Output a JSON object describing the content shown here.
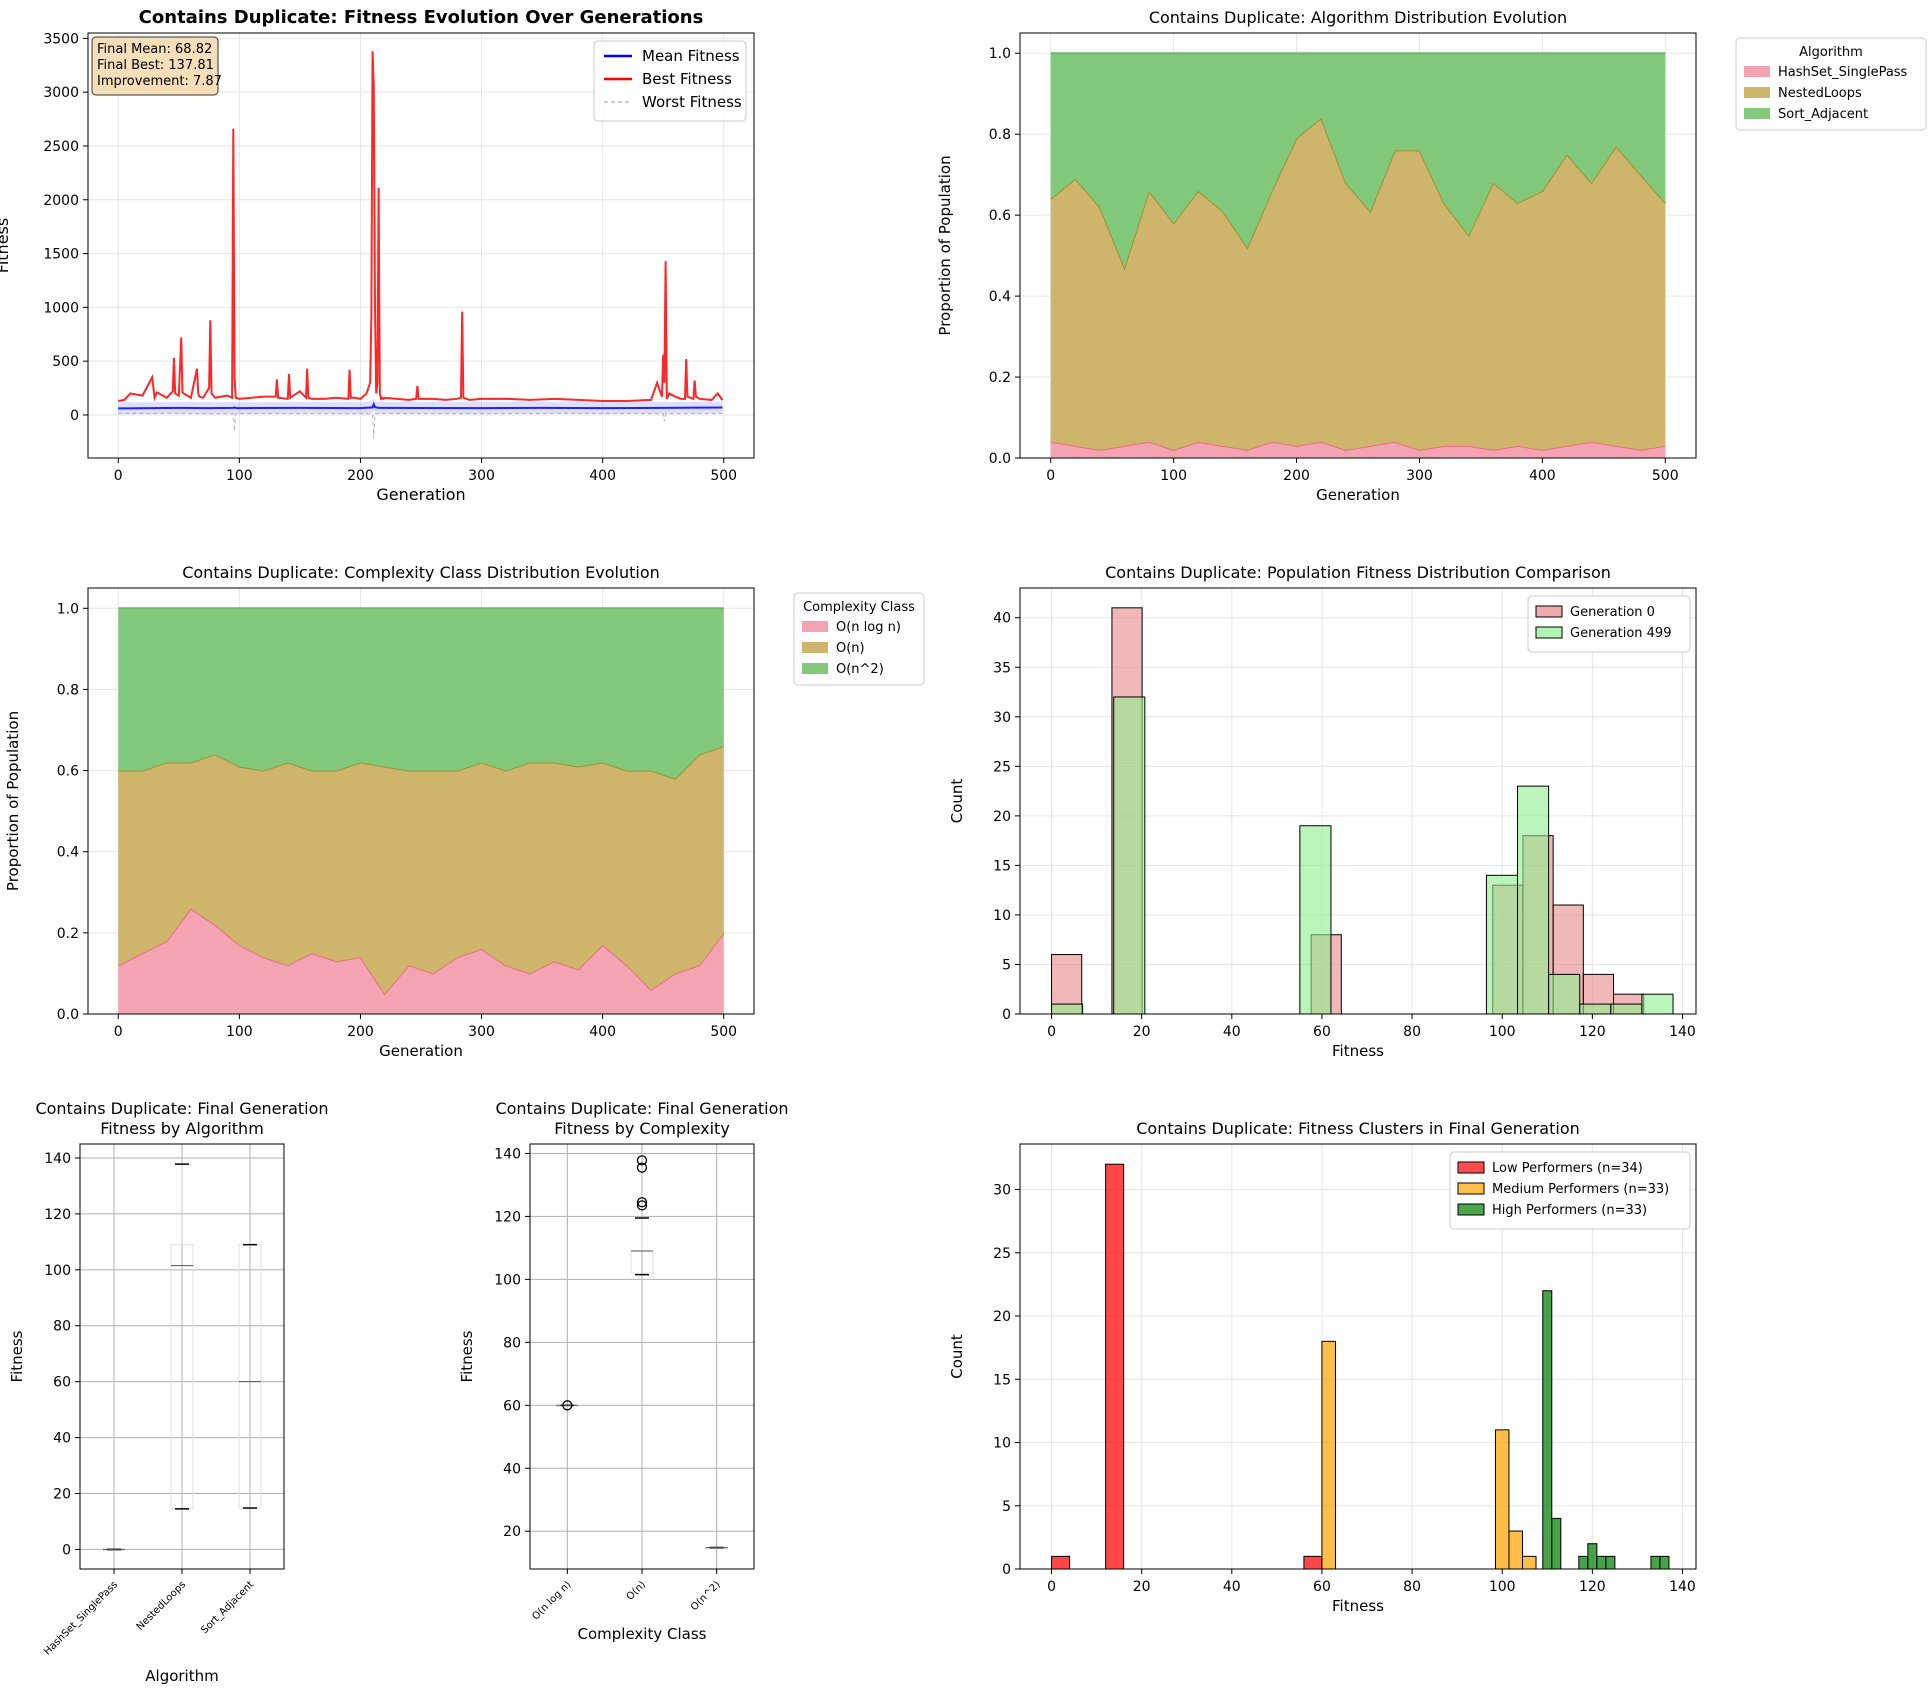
{
  "chart_data": [
    {
      "id": "fitness_evolution",
      "type": "line",
      "title": "Contains Duplicate: Fitness Evolution Over Generations",
      "xlabel": "Generation",
      "ylabel": "Fitness",
      "xlim": [
        -25,
        525
      ],
      "ylim": [
        -400,
        3550
      ],
      "xticks": [
        0,
        100,
        200,
        300,
        400,
        500
      ],
      "yticks": [
        0,
        500,
        1000,
        1500,
        2000,
        2500,
        3000,
        3500
      ],
      "grid": true,
      "legend_position": "upper right",
      "stats_box": [
        "Final Mean: 68.82",
        "Final Best: 137.81",
        "Improvement: 7.87"
      ],
      "series": [
        {
          "name": "Mean Fitness",
          "color": "#0000ff",
          "style": "solid",
          "x": [
            0,
            25,
            50,
            75,
            95,
            96,
            97,
            100,
            150,
            200,
            210,
            211,
            212,
            215,
            250,
            300,
            350,
            400,
            450,
            499
          ],
          "y": [
            61,
            63,
            66,
            64,
            66,
            70,
            65,
            64,
            66,
            64,
            70,
            100,
            72,
            66,
            65,
            64,
            66,
            63,
            66,
            68.82
          ]
        },
        {
          "name": "Best Fitness",
          "color": "#ff0000",
          "style": "solid",
          "x": [
            0,
            5,
            10,
            20,
            28,
            30,
            32,
            40,
            45,
            46,
            47,
            50,
            52,
            53,
            54,
            60,
            65,
            66,
            67,
            70,
            75,
            76,
            77,
            80,
            90,
            94,
            95,
            96,
            97,
            100,
            110,
            120,
            130,
            131,
            132,
            140,
            141,
            142,
            150,
            155,
            156,
            157,
            160,
            170,
            180,
            190,
            191,
            192,
            195,
            200,
            205,
            208,
            209,
            210,
            211,
            212,
            213,
            214,
            215,
            216,
            217,
            218,
            219,
            220,
            230,
            240,
            246,
            247,
            248,
            260,
            270,
            280,
            283,
            284,
            285,
            290,
            300,
            320,
            340,
            360,
            380,
            400,
            420,
            440,
            445,
            449,
            450,
            451,
            452,
            453,
            455,
            460,
            465,
            468,
            469,
            470,
            475,
            476,
            477,
            480,
            490,
            495,
            499
          ],
          "y": [
            130,
            140,
            200,
            180,
            350,
            160,
            210,
            160,
            220,
            530,
            200,
            180,
            720,
            210,
            200,
            160,
            430,
            200,
            170,
            160,
            250,
            880,
            200,
            160,
            180,
            160,
            2660,
            350,
            160,
            150,
            160,
            170,
            170,
            330,
            160,
            150,
            380,
            160,
            220,
            160,
            430,
            160,
            150,
            150,
            160,
            150,
            420,
            160,
            160,
            150,
            200,
            300,
            900,
            3380,
            3050,
            1000,
            200,
            300,
            2110,
            200,
            150,
            160,
            150,
            160,
            150,
            140,
            150,
            270,
            150,
            150,
            140,
            150,
            160,
            960,
            160,
            140,
            150,
            150,
            140,
            150,
            140,
            130,
            130,
            140,
            300,
            170,
            560,
            300,
            1430,
            150,
            200,
            170,
            150,
            150,
            520,
            170,
            150,
            320,
            170,
            150,
            140,
            200,
            137.81
          ]
        },
        {
          "name": "Worst Fitness",
          "color": "#999999",
          "style": "dashed",
          "x": [
            0,
            25,
            50,
            75,
            95,
            96,
            97,
            100,
            150,
            200,
            210,
            211,
            212,
            215,
            250,
            300,
            350,
            400,
            450,
            451,
            452,
            499
          ],
          "y": [
            15,
            14,
            15,
            12,
            10,
            -150,
            10,
            14,
            13,
            12,
            10,
            -220,
            10,
            14,
            13,
            12,
            14,
            15,
            12,
            -60,
            12,
            14
          ]
        }
      ]
    },
    {
      "id": "algorithm_distribution",
      "type": "area",
      "title": "Contains Duplicate: Algorithm Distribution Evolution",
      "xlabel": "Generation",
      "ylabel": "Proportion of Population",
      "xlim": [
        -25,
        525
      ],
      "ylim": [
        0,
        1.05
      ],
      "xticks": [
        0,
        100,
        200,
        300,
        400,
        500
      ],
      "yticks": [
        0.0,
        0.2,
        0.4,
        0.6,
        0.8,
        1.0
      ],
      "grid": true,
      "legend_position": "outside upper right",
      "legend_title": "Algorithm",
      "x": [
        0,
        20,
        40,
        60,
        80,
        100,
        120,
        140,
        160,
        180,
        200,
        220,
        240,
        260,
        280,
        300,
        320,
        340,
        360,
        380,
        400,
        420,
        440,
        460,
        480,
        500
      ],
      "series": [
        {
          "name": "HashSet_SinglePass",
          "color": "#f4a3b3",
          "line": "#e8707f",
          "values": [
            0.04,
            0.03,
            0.02,
            0.03,
            0.04,
            0.02,
            0.04,
            0.03,
            0.02,
            0.04,
            0.03,
            0.04,
            0.02,
            0.03,
            0.04,
            0.02,
            0.03,
            0.03,
            0.02,
            0.03,
            0.02,
            0.03,
            0.04,
            0.03,
            0.02,
            0.03
          ]
        },
        {
          "name": "NestedLoops",
          "color": "#cfb56c",
          "line": "#9e9430",
          "values": [
            0.6,
            0.66,
            0.6,
            0.44,
            0.62,
            0.56,
            0.62,
            0.58,
            0.5,
            0.62,
            0.76,
            0.8,
            0.66,
            0.58,
            0.72,
            0.74,
            0.6,
            0.52,
            0.66,
            0.6,
            0.64,
            0.72,
            0.64,
            0.74,
            0.68,
            0.6
          ]
        },
        {
          "name": "Sort_Adjacent",
          "color": "#82c97c",
          "line": "#6fb86a",
          "values": [
            0.36,
            0.31,
            0.38,
            0.53,
            0.34,
            0.42,
            0.34,
            0.39,
            0.48,
            0.34,
            0.21,
            0.16,
            0.32,
            0.39,
            0.24,
            0.24,
            0.37,
            0.45,
            0.32,
            0.37,
            0.34,
            0.25,
            0.32,
            0.23,
            0.3,
            0.37
          ]
        }
      ]
    },
    {
      "id": "complexity_distribution",
      "type": "area",
      "title": "Contains Duplicate: Complexity Class Distribution Evolution",
      "xlabel": "Generation",
      "ylabel": "Proportion of Population",
      "xlim": [
        -25,
        525
      ],
      "ylim": [
        0,
        1.05
      ],
      "xticks": [
        0,
        100,
        200,
        300,
        400,
        500
      ],
      "yticks": [
        0.0,
        0.2,
        0.4,
        0.6,
        0.8,
        1.0
      ],
      "grid": true,
      "legend_position": "outside upper right",
      "legend_title": "Complexity Class",
      "x": [
        0,
        20,
        40,
        60,
        80,
        100,
        120,
        140,
        160,
        180,
        200,
        220,
        240,
        260,
        280,
        300,
        320,
        340,
        360,
        380,
        400,
        420,
        440,
        460,
        480,
        500
      ],
      "series": [
        {
          "name": "O(n log n)",
          "color": "#f4a3b3",
          "line": "#e8707f",
          "values": [
            0.12,
            0.15,
            0.18,
            0.26,
            0.22,
            0.17,
            0.14,
            0.12,
            0.15,
            0.13,
            0.14,
            0.05,
            0.12,
            0.1,
            0.14,
            0.16,
            0.12,
            0.1,
            0.13,
            0.11,
            0.17,
            0.12,
            0.06,
            0.1,
            0.12,
            0.2
          ]
        },
        {
          "name": "O(n)",
          "color": "#cfb56c",
          "line": "#9e9430",
          "values": [
            0.48,
            0.45,
            0.44,
            0.36,
            0.42,
            0.44,
            0.46,
            0.5,
            0.45,
            0.47,
            0.48,
            0.56,
            0.48,
            0.5,
            0.46,
            0.46,
            0.48,
            0.52,
            0.49,
            0.5,
            0.45,
            0.48,
            0.54,
            0.48,
            0.52,
            0.46
          ]
        },
        {
          "name": "O(n^2)",
          "color": "#82c97c",
          "line": "#6fb86a",
          "values": [
            0.4,
            0.4,
            0.38,
            0.38,
            0.36,
            0.39,
            0.4,
            0.38,
            0.4,
            0.4,
            0.38,
            0.39,
            0.4,
            0.4,
            0.4,
            0.38,
            0.4,
            0.38,
            0.38,
            0.39,
            0.38,
            0.4,
            0.4,
            0.42,
            0.36,
            0.34
          ]
        }
      ]
    },
    {
      "id": "fitness_distribution_comparison",
      "type": "bar",
      "title": "Contains Duplicate: Population Fitness Distribution Comparison",
      "xlabel": "Fitness",
      "ylabel": "Count",
      "xlim": [
        -7,
        143
      ],
      "ylim": [
        0,
        43
      ],
      "xticks": [
        0,
        20,
        40,
        60,
        80,
        100,
        120,
        140
      ],
      "yticks": [
        0,
        5,
        10,
        15,
        20,
        25,
        30,
        35,
        40
      ],
      "grid": true,
      "legend_position": "upper right",
      "series": [
        {
          "name": "Generation 0",
          "color": "#e8898b",
          "edge": "#000000",
          "bins": [
            [
              0,
              6.7,
              6
            ],
            [
              13.4,
              20.1,
              41
            ],
            [
              57.6,
              64.3,
              8
            ],
            [
              97.9,
              104.6,
              13
            ],
            [
              104.6,
              111.3,
              18
            ],
            [
              111.3,
              118,
              11
            ],
            [
              118,
              124.7,
              4
            ],
            [
              124.7,
              131.4,
              2
            ]
          ]
        },
        {
          "name": "Generation 499",
          "color": "#90ee90",
          "edge": "#000000",
          "bins": [
            [
              0,
              6.9,
              1
            ],
            [
              13.8,
              20.7,
              32
            ],
            [
              55.1,
              62,
              19
            ],
            [
              96.5,
              103.4,
              14
            ],
            [
              103.4,
              110.3,
              23
            ],
            [
              110.3,
              117.2,
              4
            ],
            [
              117.2,
              124.1,
              1
            ],
            [
              124.1,
              131,
              1
            ],
            [
              131,
              137.9,
              2
            ]
          ]
        }
      ]
    },
    {
      "id": "boxplot_algorithm",
      "type": "box",
      "title": "Contains Duplicate: Final Generation\nFitness by Algorithm",
      "xlabel": "Algorithm",
      "ylabel": "Fitness",
      "ylim": [
        -7,
        145
      ],
      "yticks": [
        0,
        20,
        40,
        60,
        80,
        100,
        120,
        140
      ],
      "grid": true,
      "categories": [
        "HashSet_SinglePass",
        "NestedLoops",
        "Sort_Adjacent"
      ],
      "boxes": [
        {
          "min": 0,
          "q1": 0,
          "median": 0,
          "q3": 0,
          "max": 0,
          "outliers": []
        },
        {
          "min": 14.5,
          "q1": 14.5,
          "median": 101.5,
          "q3": 109,
          "max": 137.8,
          "outliers": []
        },
        {
          "min": 14.8,
          "q1": 14.8,
          "median": 60,
          "q3": 109,
          "max": 109,
          "outliers": []
        }
      ]
    },
    {
      "id": "boxplot_complexity",
      "type": "box",
      "title": "Contains Duplicate: Final Generation\nFitness by Complexity",
      "xlabel": "Complexity Class",
      "ylabel": "Fitness",
      "ylim": [
        8,
        143
      ],
      "yticks": [
        20,
        40,
        60,
        80,
        100,
        120,
        140
      ],
      "grid": true,
      "categories": [
        "O(n log n)",
        "O(n)",
        "O(n^2)"
      ],
      "boxes": [
        {
          "min": 60,
          "q1": 60,
          "median": 60,
          "q3": 60,
          "max": 60,
          "outliers": [
            60
          ]
        },
        {
          "min": 101.5,
          "q1": 102,
          "median": 109,
          "q3": 109,
          "max": 119.5,
          "outliers": [
            123.5,
            124.5,
            135.5,
            137.8
          ]
        },
        {
          "min": 14.8,
          "q1": 14.8,
          "median": 14.8,
          "q3": 14.8,
          "max": 14.8,
          "outliers": []
        }
      ]
    },
    {
      "id": "fitness_clusters",
      "type": "bar",
      "title": "Contains Duplicate: Fitness Clusters in Final Generation",
      "xlabel": "Fitness",
      "ylabel": "Count",
      "xlim": [
        -7,
        143
      ],
      "ylim": [
        0,
        33.6
      ],
      "xticks": [
        0,
        20,
        40,
        60,
        80,
        100,
        120,
        140
      ],
      "yticks": [
        0,
        5,
        10,
        15,
        20,
        25,
        30
      ],
      "grid": true,
      "legend_position": "upper right",
      "series": [
        {
          "name": "Low Performers (n=34)",
          "color": "#ff0000",
          "edge": "#000000",
          "bins": [
            [
              0,
              4,
              1
            ],
            [
              12,
              16,
              32
            ],
            [
              56,
              60,
              1
            ]
          ]
        },
        {
          "name": "Medium Performers (n=33)",
          "color": "#ffa500",
          "edge": "#000000",
          "bins": [
            [
              60,
              63,
              18
            ],
            [
              98.5,
              101.5,
              11
            ],
            [
              101.5,
              104.5,
              3
            ],
            [
              104.5,
              107.5,
              1
            ]
          ]
        },
        {
          "name": "High Performers (n=33)",
          "color": "#008000",
          "edge": "#000000",
          "bins": [
            [
              109,
              111,
              22
            ],
            [
              111,
              113,
              4
            ],
            [
              117,
              119,
              1
            ],
            [
              119,
              121,
              2
            ],
            [
              121,
              123,
              1
            ],
            [
              123,
              125,
              1
            ],
            [
              133,
              135,
              1
            ],
            [
              135,
              137,
              1
            ]
          ]
        }
      ]
    }
  ]
}
